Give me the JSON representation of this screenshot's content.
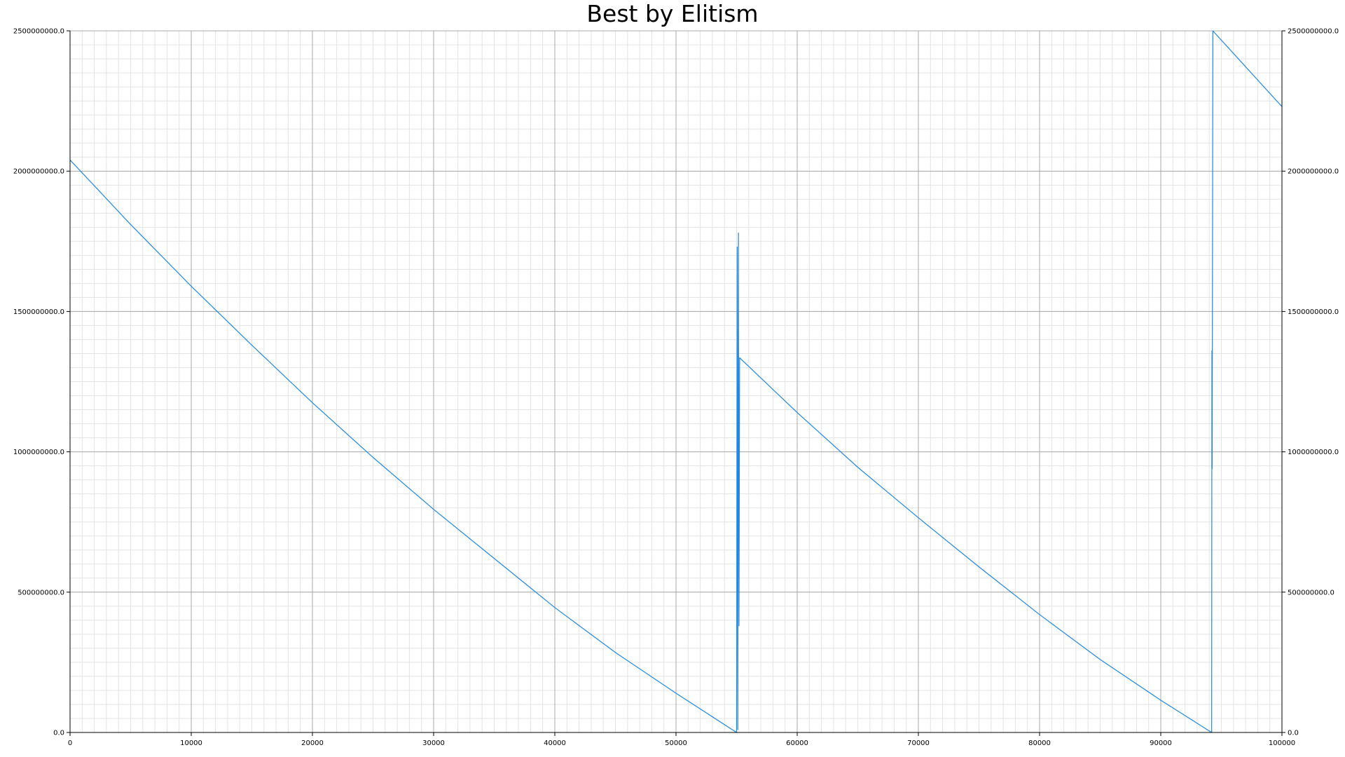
{
  "chart_data": {
    "type": "line",
    "title": "Best by Elitism",
    "xlabel": "",
    "ylabel": "",
    "xlim": [
      0,
      100000
    ],
    "ylim": [
      0,
      2500000000
    ],
    "grid": true,
    "minor_grid": true,
    "secondary_y_axis": "right",
    "x_ticks": [
      0,
      10000,
      20000,
      30000,
      40000,
      50000,
      60000,
      70000,
      80000,
      90000,
      100000
    ],
    "x_tick_labels": [
      "0",
      "10000",
      "20000",
      "30000",
      "40000",
      "50000",
      "60000",
      "70000",
      "80000",
      "90000",
      "100000"
    ],
    "y_ticks": [
      0,
      500000000,
      1000000000,
      1500000000,
      2000000000,
      2500000000
    ],
    "y_tick_labels": [
      "0.0",
      "500000000.0",
      "1000000000.0",
      "1500000000.0",
      "2000000000.0",
      "2500000000.0"
    ],
    "series": [
      {
        "color": "#1e88e5",
        "x": [
          0,
          5000,
          10000,
          15000,
          20000,
          25000,
          30000,
          35000,
          40000,
          45000,
          50000,
          55000,
          55050,
          55100,
          55150,
          55200,
          55250,
          60000,
          65000,
          70000,
          75000,
          80000,
          85000,
          90000,
          94200,
          94220,
          94240,
          94300,
          100000
        ],
        "y": [
          2040000000,
          1810000000,
          1590000000,
          1380000000,
          1175000000,
          980000000,
          795000000,
          620000000,
          445000000,
          285000000,
          140000000,
          0,
          1730000000,
          10000000,
          1780000000,
          380000000,
          1335000000,
          1140000000,
          945000000,
          765000000,
          590000000,
          420000000,
          260000000,
          115000000,
          0,
          1360000000,
          940000000,
          2500000000,
          2230000000
        ]
      }
    ]
  }
}
